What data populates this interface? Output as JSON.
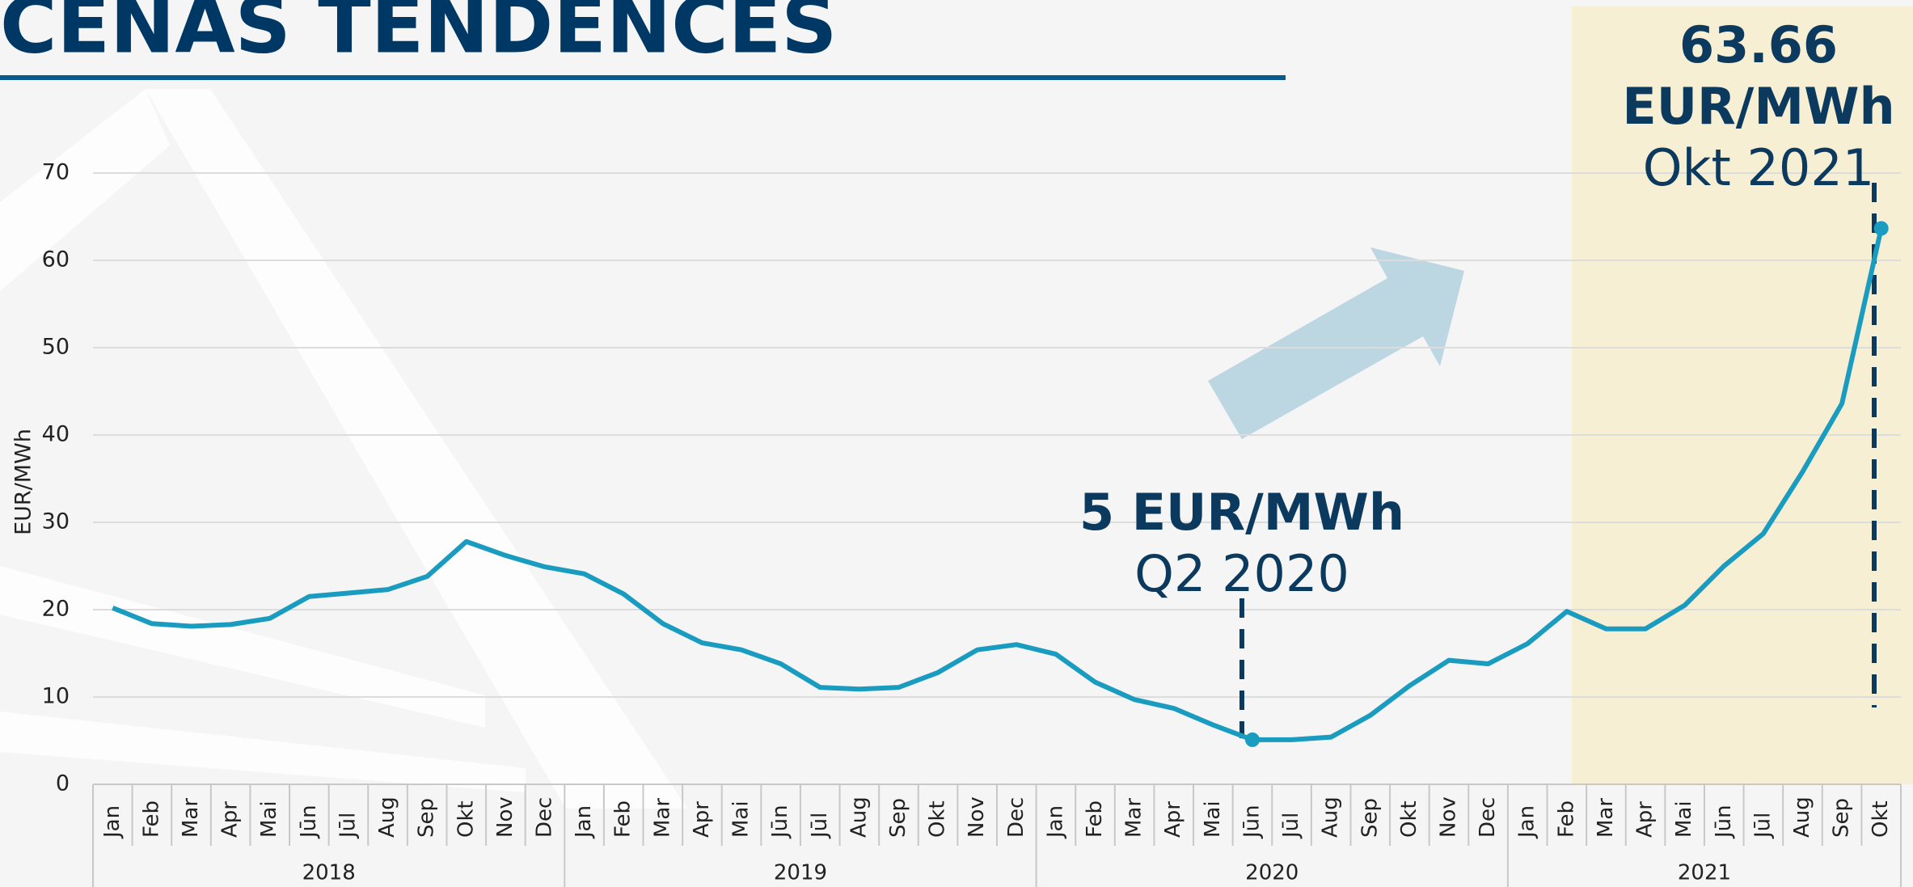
{
  "chart_data": {
    "type": "line",
    "title": "CENAS TENDENCES",
    "y_label": "EUR/MWh",
    "groups": [
      {
        "label": "2018",
        "categories": [
          "Jan",
          "Feb",
          "Mar",
          "Apr",
          "Mai",
          "Jūn",
          "Jūl",
          "Aug",
          "Sep",
          "Okt",
          "Nov",
          "Dec"
        ]
      },
      {
        "label": "2019",
        "categories": [
          "Jan",
          "Feb",
          "Mar",
          "Apr",
          "Mai",
          "Jūn",
          "Jūl",
          "Aug",
          "Sep",
          "Okt",
          "Nov",
          "Dec"
        ]
      },
      {
        "label": "2020",
        "categories": [
          "Jan",
          "Feb",
          "Mar",
          "Apr",
          "Mai",
          "Jūn",
          "Jūl",
          "Aug",
          "Sep",
          "Okt",
          "Nov",
          "Dec"
        ]
      },
      {
        "label": "2021",
        "categories": [
          "Jan",
          "Feb",
          "Mar",
          "Apr",
          "Mai",
          "Jūn",
          "Jūl",
          "Aug",
          "Sep",
          "Okt"
        ]
      }
    ],
    "series": [
      {
        "color": "#1a9bc0",
        "values": [
          20.2,
          18.4,
          18.1,
          18.3,
          19.0,
          21.5,
          21.9,
          22.3,
          23.8,
          27.8,
          26.2,
          24.9,
          24.1,
          21.8,
          18.4,
          16.2,
          15.4,
          13.8,
          11.1,
          10.9,
          11.1,
          12.8,
          15.4,
          16.0,
          14.9,
          11.7,
          9.7,
          8.7,
          6.8,
          5.1,
          5.1,
          5.4,
          7.9,
          11.3,
          14.2,
          13.8,
          16.1,
          19.8,
          17.8,
          17.8,
          20.5,
          25.0,
          28.7,
          35.8,
          43.6,
          63.66
        ]
      }
    ],
    "ylim": [
      0,
      70
    ],
    "yticks": [
      0,
      10,
      20,
      30,
      40,
      50,
      60,
      70
    ],
    "grid": true,
    "annotations": [
      {
        "lines": [
          "5 EUR/MWh"
        ],
        "period": "Q2 2020"
      },
      {
        "lines": [
          "63.66",
          "EUR/MWh"
        ],
        "period": "Okt 2021"
      }
    ]
  }
}
